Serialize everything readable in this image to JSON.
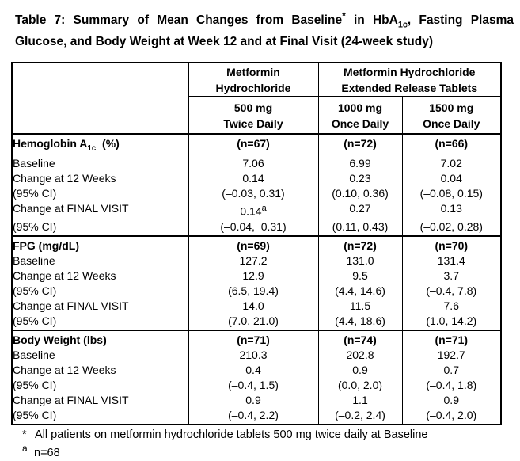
{
  "title": {
    "line1_parts": [
      {
        "t": "Table 7: Summary of Mean Changes from Baseline"
      },
      {
        "t": "*",
        "sup": true
      },
      {
        "t": " in HbA"
      },
      {
        "t": "1c",
        "sub": true
      },
      {
        "t": ", Fasting Plasma"
      }
    ],
    "line2": "Glucose, and Body Weight at Week 12 and at Final Visit (24-week study)"
  },
  "table": {
    "group_headers": [
      {
        "label": "Metformin Hydrochloride"
      },
      {
        "label": "Metformin Hydrochloride Extended Release Tablets"
      }
    ],
    "dose_headers": [
      "500 mg\nTwice Daily",
      "1000 mg\nOnce Daily",
      "1500 mg\nOnce Daily"
    ],
    "sections": [
      {
        "name_parts": [
          {
            "t": "Hemoglobin A"
          },
          {
            "t": "1c",
            "sub": true
          },
          {
            "t": "  (%)"
          }
        ],
        "n_values": [
          "(n=67)",
          "(n=72)",
          "(n=66)"
        ],
        "rows": [
          {
            "label": "Baseline",
            "cells": [
              "7.06",
              "6.99",
              "7.02"
            ]
          },
          {
            "label": "Change at 12 Weeks",
            "cells": [
              "0.14",
              "0.23",
              "0.04"
            ]
          },
          {
            "label": "(95% CI)",
            "cells": [
              "(–0.03, 0.31)",
              "(0.10, 0.36)",
              "(–0.08, 0.15)"
            ]
          },
          {
            "label": "Change at FINAL VISIT",
            "cells": [
              [
                {
                  "t": "0.14"
                },
                {
                  "t": "a",
                  "sup": true
                }
              ],
              "0.27",
              "0.13"
            ]
          },
          {
            "label": "(95% CI)",
            "cells": [
              "(–0.04,  0.31)",
              "(0.11, 0.43)",
              "(–0.02, 0.28)"
            ]
          }
        ]
      },
      {
        "name_parts": [
          {
            "t": "FPG (mg/dL)"
          }
        ],
        "n_values": [
          "(n=69)",
          "(n=72)",
          "(n=70)"
        ],
        "rows": [
          {
            "label": "Baseline",
            "cells": [
              "127.2",
              "131.0",
              "131.4"
            ]
          },
          {
            "label": "Change at 12 Weeks",
            "cells": [
              "12.9",
              "9.5",
              "3.7"
            ]
          },
          {
            "label": "(95% CI)",
            "cells": [
              "(6.5, 19.4)",
              "(4.4, 14.6)",
              "(–0.4, 7.8)"
            ]
          },
          {
            "label": "Change at FINAL VISIT",
            "cells": [
              "14.0",
              "11.5",
              "7.6"
            ]
          },
          {
            "label": "(95% CI)",
            "cells": [
              "(7.0, 21.0)",
              "(4.4, 18.6)",
              "(1.0, 14.2)"
            ]
          }
        ]
      },
      {
        "name_parts": [
          {
            "t": "Body Weight (lbs)"
          }
        ],
        "n_values": [
          "(n=71)",
          "(n=74)",
          "(n=71)"
        ],
        "rows": [
          {
            "label": "Baseline",
            "cells": [
              "210.3",
              "202.8",
              "192.7"
            ]
          },
          {
            "label": "Change at 12 Weeks",
            "cells": [
              "0.4",
              "0.9",
              "0.7"
            ]
          },
          {
            "label": "(95% CI)",
            "cells": [
              "(–0.4, 1.5)",
              "(0.0, 2.0)",
              "(–0.4, 1.8)"
            ]
          },
          {
            "label": "Change at FINAL VISIT",
            "cells": [
              "0.9",
              "1.1",
              "0.9"
            ]
          },
          {
            "label": "(95% CI)",
            "cells": [
              "(–0.4, 2.2)",
              "(–0.2, 2.4)",
              "(–0.4, 2.0)"
            ]
          }
        ]
      }
    ]
  },
  "footnotes": [
    {
      "marker": "*",
      "text": "All patients on metformin hydrochloride tablets 500 mg twice daily at Baseline"
    },
    {
      "marker": "a",
      "text": "n=68"
    }
  ],
  "colors": {
    "text": "#000000",
    "background": "#ffffff",
    "border": "#000000"
  }
}
